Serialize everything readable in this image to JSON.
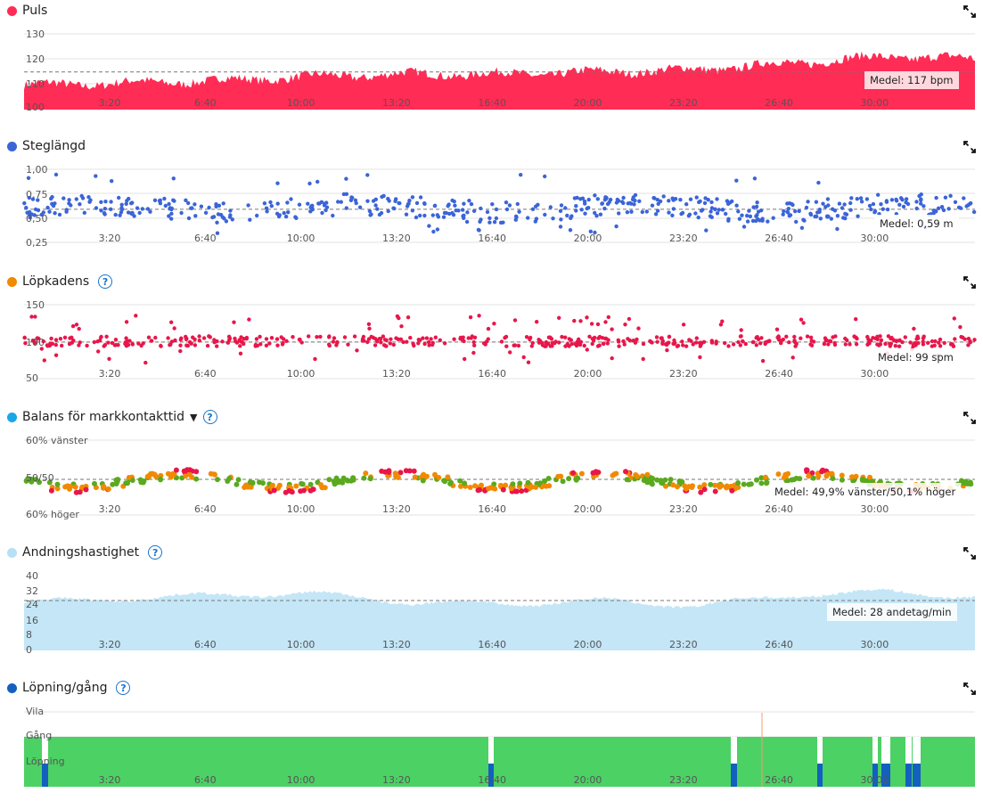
{
  "panels": {
    "puls": {
      "title": "Puls",
      "color": "#ff2c55",
      "avg": "Medel: 117 bpm",
      "yticks": [
        "130",
        "120",
        "110",
        "100"
      ]
    },
    "steglangd": {
      "title": "Steglängd",
      "color": "#3b64d8",
      "avg": "Medel: 0,59 m",
      "yticks": [
        "1,00",
        "0,75",
        "0,50",
        "0,25"
      ]
    },
    "lopkadens": {
      "title": "Löpkadens",
      "color": "#f18a00",
      "avg": "Medel: 99 spm",
      "yticks": [
        "150",
        "100",
        "50"
      ]
    },
    "balans": {
      "title": "Balans för markkontakttid",
      "color": "#1aa7e8",
      "avg": "Medel: 49,9% vänster/50,1% höger",
      "yticks": [
        "60% vänster",
        "50/50",
        "60% höger"
      ]
    },
    "andning": {
      "title": "Andningshastighet",
      "color": "#b6e0f6",
      "avg": "Medel: 28 andetag/min",
      "yticks": [
        "40",
        "32",
        "24",
        "16",
        "8",
        "0"
      ]
    },
    "lopning": {
      "title": "Löpning/gång",
      "color": "#1360c0",
      "yticks": [
        "Vila",
        "Gång",
        "Löpning"
      ]
    }
  },
  "x_ticks": [
    "3:20",
    "6:40",
    "10:00",
    "13:20",
    "16:40",
    "20:00",
    "23:20",
    "26:40",
    "30:00"
  ],
  "chart_data": [
    {
      "type": "area",
      "id": "puls",
      "xlim": [
        0,
        1980
      ],
      "ylim": [
        100,
        135
      ],
      "mean": 117,
      "x": [
        0,
        200,
        400,
        600,
        800,
        1000,
        1200,
        1400,
        1600,
        1800,
        1980
      ],
      "y": [
        111,
        112,
        113,
        115,
        116,
        116,
        117,
        118,
        121,
        124,
        123
      ]
    },
    {
      "type": "scatter",
      "id": "steglangd",
      "xlim": [
        0,
        1980
      ],
      "ylim": [
        0.25,
        1.05
      ],
      "mean": 0.59
    },
    {
      "type": "scatter",
      "id": "lopkadens",
      "xlim": [
        0,
        1980
      ],
      "ylim": [
        50,
        155
      ],
      "mean": 99
    },
    {
      "type": "scatter",
      "id": "balans",
      "xlim": [
        0,
        1980
      ],
      "mean": 49.9
    },
    {
      "type": "area",
      "id": "andning",
      "xlim": [
        0,
        1980
      ],
      "ylim": [
        0,
        42
      ],
      "mean": 28,
      "x": [
        0,
        200,
        400,
        600,
        800,
        1000,
        1200,
        1400,
        1600,
        1800,
        1980
      ],
      "y": [
        27,
        29,
        31,
        32,
        27,
        26,
        28,
        25,
        31,
        33,
        30
      ]
    },
    {
      "type": "area",
      "id": "lopning",
      "xlim": [
        0,
        1980
      ]
    }
  ]
}
